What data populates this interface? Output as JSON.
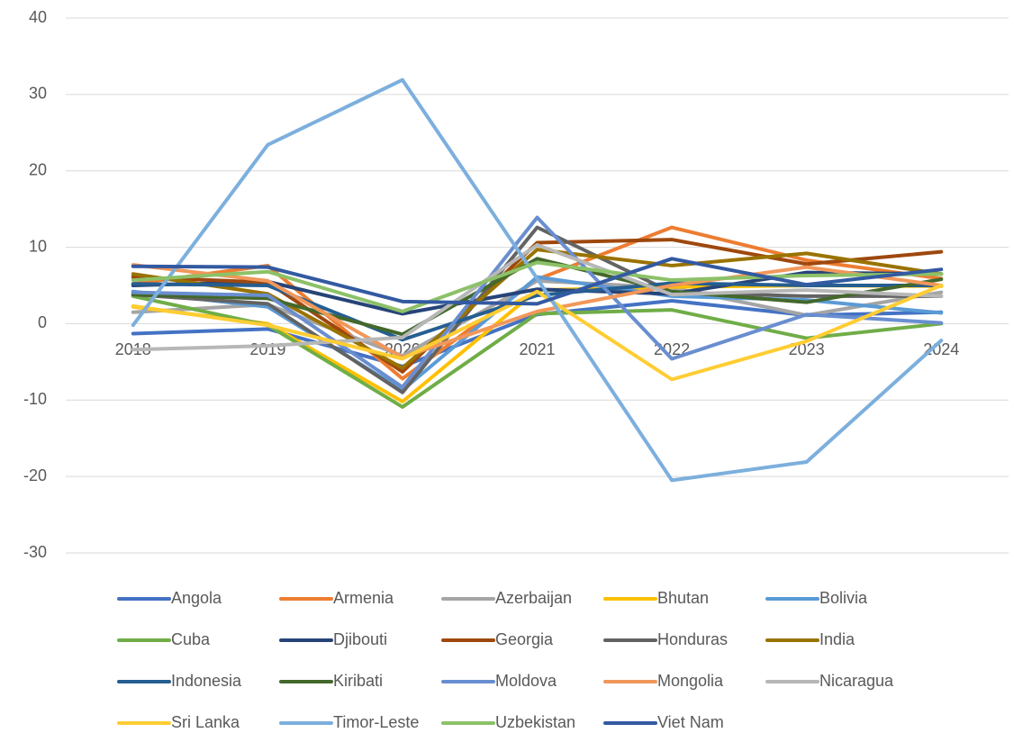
{
  "chart_data": {
    "type": "line",
    "categories": [
      "2018",
      "2019",
      "2020",
      "2021",
      "2022",
      "2023",
      "2024"
    ],
    "ylim": [
      -30,
      40
    ],
    "yticks": [
      -30,
      -20,
      -10,
      0,
      10,
      20,
      30,
      40
    ],
    "grid": true,
    "legend": "bottom",
    "series": [
      {
        "name": "Angola",
        "color": "#4472c4",
        "values": [
          -1.3,
          -0.7,
          -5.6,
          1.2,
          3.0,
          1.1,
          1.5
        ]
      },
      {
        "name": "Armenia",
        "color": "#ed7d31",
        "values": [
          5.2,
          7.6,
          -7.2,
          5.8,
          12.6,
          8.3,
          5.9
        ]
      },
      {
        "name": "Azerbaijan",
        "color": "#a5a5a5",
        "values": [
          1.5,
          2.5,
          -4.2,
          5.6,
          4.7,
          1.1,
          4.1
        ]
      },
      {
        "name": "Bhutan",
        "color": "#ffc000",
        "values": [
          2.2,
          0,
          -10.2,
          4.4,
          4.8,
          5.0,
          4.9
        ]
      },
      {
        "name": "Bolivia",
        "color": "#5b9bd5",
        "values": [
          4.2,
          2.2,
          -8.7,
          6.1,
          3.6,
          3.1,
          1.4
        ]
      },
      {
        "name": "Cuba",
        "color": "#70ad47",
        "values": [
          3.6,
          -0.2,
          -10.9,
          1.3,
          1.8,
          -1.9,
          0
        ]
      },
      {
        "name": "Djibouti",
        "color": "#264478",
        "values": [
          5.0,
          5.5,
          1.3,
          4.5,
          3.9,
          6.7,
          6.5
        ]
      },
      {
        "name": "Georgia",
        "color": "#9e480e",
        "values": [
          6.1,
          5.4,
          -6.3,
          10.6,
          11.0,
          7.8,
          9.4
        ]
      },
      {
        "name": "Honduras",
        "color": "#636363",
        "values": [
          3.8,
          2.6,
          -9.0,
          12.6,
          4.1,
          3.6,
          3.6
        ]
      },
      {
        "name": "India",
        "color": "#997300",
        "values": [
          6.5,
          3.9,
          -5.8,
          9.7,
          7.6,
          9.2,
          6.5
        ]
      },
      {
        "name": "Indonesia",
        "color": "#255e91",
        "values": [
          5.2,
          5.0,
          -2.1,
          3.7,
          5.3,
          5.0,
          5.0
        ]
      },
      {
        "name": "Kiribati",
        "color": "#43682b",
        "values": [
          3.8,
          3.3,
          -1.4,
          8.5,
          4.2,
          2.8,
          5.8
        ]
      },
      {
        "name": "Moldova",
        "color": "#698ed0",
        "values": [
          4.1,
          3.7,
          -8.3,
          13.9,
          -4.6,
          1.2,
          0.1
        ]
      },
      {
        "name": "Mongolia",
        "color": "#f1975a",
        "values": [
          7.7,
          5.6,
          -4.4,
          1.6,
          5.0,
          7.4,
          5.0
        ]
      },
      {
        "name": "Nicaragua",
        "color": "#b7b7b7",
        "values": [
          -3.4,
          -2.9,
          -1.8,
          10.3,
          3.8,
          4.4,
          3.6
        ]
      },
      {
        "name": "Sri Lanka",
        "color": "#ffcd33",
        "values": [
          2.3,
          -0.2,
          -4.6,
          4.2,
          -7.3,
          -2.3,
          5.0
        ]
      },
      {
        "name": "Timor-Leste",
        "color": "#7cafdd",
        "values": [
          -0.2,
          23.4,
          31.9,
          5.9,
          -20.5,
          -18.1,
          -2.2
        ]
      },
      {
        "name": "Uzbekistan",
        "color": "#8cc168",
        "values": [
          5.7,
          6.8,
          1.6,
          8.0,
          5.7,
          6.3,
          6.5
        ]
      },
      {
        "name": "Viet Nam",
        "color": "#335aa1",
        "values": [
          7.5,
          7.4,
          2.9,
          2.6,
          8.5,
          5.1,
          7.1
        ]
      }
    ]
  }
}
